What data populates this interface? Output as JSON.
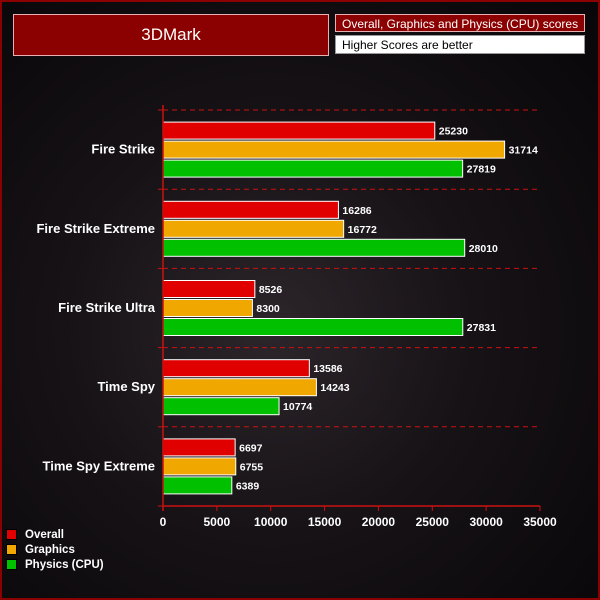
{
  "title": "3DMark",
  "subtitle": "Overall, Graphics and Physics (CPU) scores",
  "note": "Higher Scores are better",
  "colors": {
    "overall": "#e00000",
    "graphics": "#f0a800",
    "physics": "#00c000",
    "accent": "#8b0000",
    "gridline": "#cc1111"
  },
  "chart_data": {
    "type": "bar",
    "orientation": "horizontal",
    "categories": [
      "Fire Strike",
      "Fire Strike Extreme",
      "Fire Strike Ultra",
      "Time Spy",
      "Time Spy Extreme"
    ],
    "series": [
      {
        "name": "Overall",
        "values": [
          25230,
          16286,
          8526,
          13586,
          6697
        ]
      },
      {
        "name": "Graphics",
        "values": [
          31714,
          16772,
          8300,
          14243,
          6755
        ]
      },
      {
        "name": "Physics (CPU)",
        "values": [
          27819,
          28010,
          27831,
          10774,
          6389
        ]
      }
    ],
    "xlim": [
      0,
      35000
    ],
    "xticks": [
      0,
      5000,
      10000,
      15000,
      20000,
      25000,
      30000,
      35000
    ],
    "legend_position": "bottom-left",
    "grid": true
  }
}
